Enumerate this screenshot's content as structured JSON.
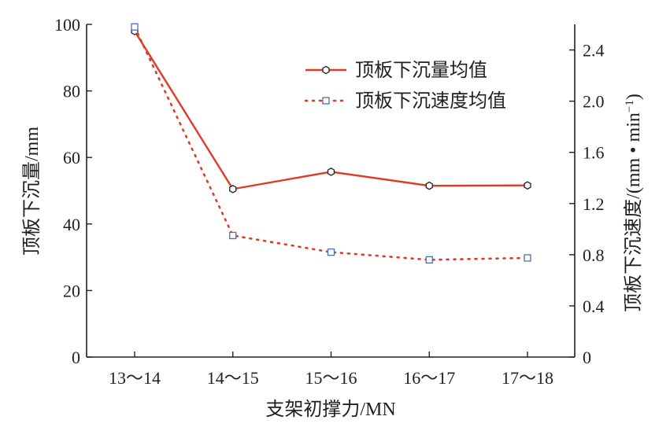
{
  "chart_data": {
    "type": "line",
    "xlabel": "支架初撑力/MN",
    "ylabel": "顶板下沉量/mm",
    "y2label": "顶板下沉速度/(mm • min",
    "y2label_sup": "−1",
    "y2label_end": ")",
    "categories": [
      "13～14",
      "14～15",
      "15～16",
      "16～17",
      "17～18"
    ],
    "ylim": [
      0,
      100
    ],
    "y2lim": [
      0,
      2.6
    ],
    "yticks": [
      0,
      20,
      40,
      60,
      80,
      100
    ],
    "y2ticks": [
      "0",
      "0.4",
      "0.8",
      "1.2",
      "1.6",
      "2.0",
      "2.4"
    ],
    "legend_position": "top-right",
    "grid": false,
    "series": [
      {
        "name": "顶板下沉量均值",
        "axis": "left",
        "values": [
          98.0,
          50.5,
          55.7,
          51.5,
          51.6
        ],
        "color": "#e03a26",
        "line_style": "solid",
        "marker": "hexagon"
      },
      {
        "name": "顶板下沉速度均值",
        "axis": "right",
        "values": [
          2.58,
          0.95,
          0.82,
          0.76,
          0.775
        ],
        "color": "#e03a26",
        "marker_color": "#4a6fb5",
        "line_style": "dotted",
        "marker": "square"
      }
    ]
  }
}
